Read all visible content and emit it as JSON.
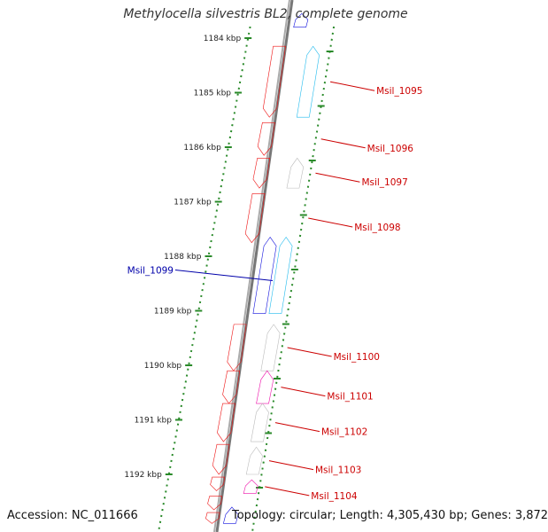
{
  "title": "Methylocella silvestris BL2, complete genome",
  "footer": {
    "accession": "Accession: NC_011666",
    "topology": "Topology: circular; Length: 4,305,430 bp; Genes: 3,872"
  },
  "colors": {
    "red": "#ee1111",
    "cyan": "#22bbee",
    "blue": "#1111dd",
    "gray": "#bbbbbb",
    "magenta": "#ee11aa",
    "backbone": "#777777",
    "tick": "#2a8a2a",
    "label_red": "#cc0000",
    "label_blue": "#0000aa"
  },
  "ticks": [
    {
      "kbp": 1184,
      "label": "1184 kbp"
    },
    {
      "kbp": 1185,
      "label": "1185 kbp"
    },
    {
      "kbp": 1186,
      "label": "1186 kbp"
    },
    {
      "kbp": 1187,
      "label": "1187 kbp"
    },
    {
      "kbp": 1188,
      "label": "1188 kbp"
    },
    {
      "kbp": 1189,
      "label": "1189 kbp"
    },
    {
      "kbp": 1190,
      "label": "1190 kbp"
    },
    {
      "kbp": 1191,
      "label": "1191 kbp"
    },
    {
      "kbp": 1192,
      "label": "1192 kbp"
    }
  ],
  "features": [
    {
      "start": 1183.55,
      "end": 1183.8,
      "strand": "+",
      "lane": 0,
      "color": "blue"
    },
    {
      "start": 1184.15,
      "end": 1185.45,
      "strand": "-",
      "lane": 0,
      "color": "red"
    },
    {
      "start": 1184.15,
      "end": 1185.45,
      "strand": "+",
      "lane": 1,
      "color": "cyan",
      "label": "Msil_1095"
    },
    {
      "start": 1185.55,
      "end": 1186.15,
      "strand": "-",
      "lane": 0,
      "color": "red",
      "label": "Msil_1096"
    },
    {
      "start": 1186.2,
      "end": 1186.75,
      "strand": "-",
      "lane": 0,
      "color": "red"
    },
    {
      "start": 1186.2,
      "end": 1186.75,
      "strand": "+",
      "lane": 1,
      "color": "gray",
      "label": "Msil_1097"
    },
    {
      "start": 1186.85,
      "end": 1187.75,
      "strand": "-",
      "lane": 0,
      "color": "red",
      "label": "Msil_1098"
    },
    {
      "start": 1187.65,
      "end": 1189.05,
      "strand": "+",
      "lane": 1,
      "color": "cyan",
      "label": "Msil_1099"
    },
    {
      "start": 1187.65,
      "end": 1189.05,
      "strand": "+",
      "lane": 0,
      "color": "blue"
    },
    {
      "start": 1189.25,
      "end": 1190.1,
      "strand": "-",
      "lane": 0,
      "color": "red"
    },
    {
      "start": 1189.25,
      "end": 1190.1,
      "strand": "+",
      "lane": 1,
      "color": "gray",
      "label": "Msil_1100"
    },
    {
      "start": 1190.1,
      "end": 1190.7,
      "strand": "-",
      "lane": 0,
      "color": "red"
    },
    {
      "start": 1190.1,
      "end": 1190.7,
      "strand": "+",
      "lane": 1,
      "color": "magenta",
      "label": "Msil_1101"
    },
    {
      "start": 1190.7,
      "end": 1191.4,
      "strand": "-",
      "lane": 0,
      "color": "red"
    },
    {
      "start": 1190.7,
      "end": 1191.4,
      "strand": "+",
      "lane": 1,
      "color": "gray",
      "label": "Msil_1102"
    },
    {
      "start": 1191.45,
      "end": 1192.0,
      "strand": "-",
      "lane": 0,
      "color": "red"
    },
    {
      "start": 1191.5,
      "end": 1192.0,
      "strand": "+",
      "lane": 1,
      "color": "gray",
      "label": "Msil_1103"
    },
    {
      "start": 1192.05,
      "end": 1192.3,
      "strand": "-",
      "lane": 0,
      "color": "red"
    },
    {
      "start": 1192.1,
      "end": 1192.35,
      "strand": "+",
      "lane": 1,
      "color": "magenta",
      "label": "Msil_1104"
    },
    {
      "start": 1192.4,
      "end": 1192.65,
      "strand": "-",
      "lane": 0,
      "color": "red"
    },
    {
      "start": 1192.7,
      "end": 1192.9,
      "strand": "-",
      "lane": 0,
      "color": "red"
    },
    {
      "start": 1192.6,
      "end": 1192.9,
      "strand": "+",
      "lane": 0,
      "color": "blue"
    }
  ]
}
